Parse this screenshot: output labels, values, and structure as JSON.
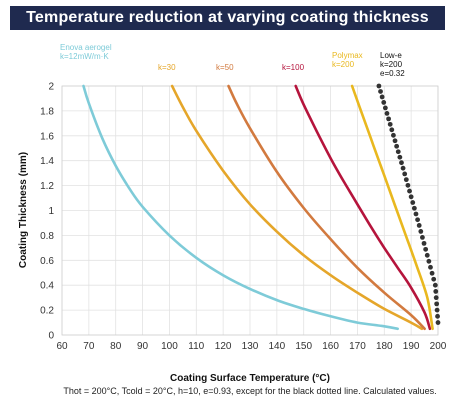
{
  "chart_data": {
    "type": "line",
    "title": "Temperature reduction at varying coating thickness",
    "xlabel": "Coating Surface Temperature (°C)",
    "ylabel": "Coating Thickness (mm)",
    "xlim": [
      60,
      200
    ],
    "ylim": [
      0,
      2
    ],
    "x_ticks": [
      "60",
      "70",
      "80",
      "90",
      "100",
      "110",
      "120",
      "130",
      "140",
      "150",
      "160",
      "170",
      "180",
      "190",
      "200"
    ],
    "y_ticks": [
      "0",
      "0.2",
      "0.4",
      "0.6",
      "0.8",
      "1",
      "1.2",
      "1.4",
      "1.6",
      "1.8",
      "2"
    ],
    "grid": true,
    "footnote": "Thot = 200°C, Tcold = 20°C, h=10, e=0.93, except for the black dotted line. Calculated values.",
    "series": [
      {
        "name": "Enova aerogel",
        "sublabel": "k=12mW/m·K",
        "color": "#7ecbd8",
        "style": "solid",
        "x": [
          68,
          70,
          75,
          80,
          85,
          90,
          100,
          110,
          120,
          130,
          140,
          150,
          160,
          170,
          180,
          185
        ],
        "y": [
          2.0,
          1.86,
          1.58,
          1.36,
          1.18,
          1.03,
          0.8,
          0.62,
          0.48,
          0.37,
          0.28,
          0.21,
          0.15,
          0.1,
          0.07,
          0.05
        ]
      },
      {
        "name": "k=30",
        "color": "#e5a62a",
        "style": "solid",
        "x": [
          101,
          105,
          110,
          120,
          130,
          140,
          150,
          160,
          170,
          180,
          190,
          194
        ],
        "y": [
          2.0,
          1.83,
          1.64,
          1.32,
          1.05,
          0.83,
          0.64,
          0.48,
          0.34,
          0.21,
          0.1,
          0.05
        ]
      },
      {
        "name": "k=50",
        "color": "#d27a3f",
        "style": "solid",
        "x": [
          122,
          125,
          130,
          140,
          150,
          160,
          170,
          180,
          190,
          195
        ],
        "y": [
          2.0,
          1.86,
          1.66,
          1.31,
          1.02,
          0.77,
          0.54,
          0.34,
          0.16,
          0.05
        ]
      },
      {
        "name": "k=100",
        "color": "#b5143c",
        "style": "solid",
        "x": [
          147,
          150,
          155,
          160,
          165,
          170,
          175,
          180,
          185,
          190,
          195,
          197
        ],
        "y": [
          2.0,
          1.85,
          1.63,
          1.42,
          1.23,
          1.05,
          0.87,
          0.7,
          0.54,
          0.38,
          0.18,
          0.05
        ]
      },
      {
        "name": "Polymax",
        "sublabel": "k=200",
        "color": "#e9b81f",
        "style": "solid",
        "x": [
          168,
          172,
          176,
          180,
          184,
          188,
          192,
          196,
          198
        ],
        "y": [
          2.0,
          1.76,
          1.52,
          1.28,
          1.04,
          0.8,
          0.56,
          0.3,
          0.05
        ]
      },
      {
        "name": "Low-e",
        "sublabel": "k=200",
        "sublabel2": "e=0.32",
        "color": "#333333",
        "style": "dotted",
        "x": [
          178,
          181,
          184,
          187,
          190,
          193,
          196,
          199,
          200
        ],
        "y": [
          2.0,
          1.78,
          1.56,
          1.34,
          1.11,
          0.88,
          0.64,
          0.4,
          0.1
        ]
      }
    ]
  }
}
